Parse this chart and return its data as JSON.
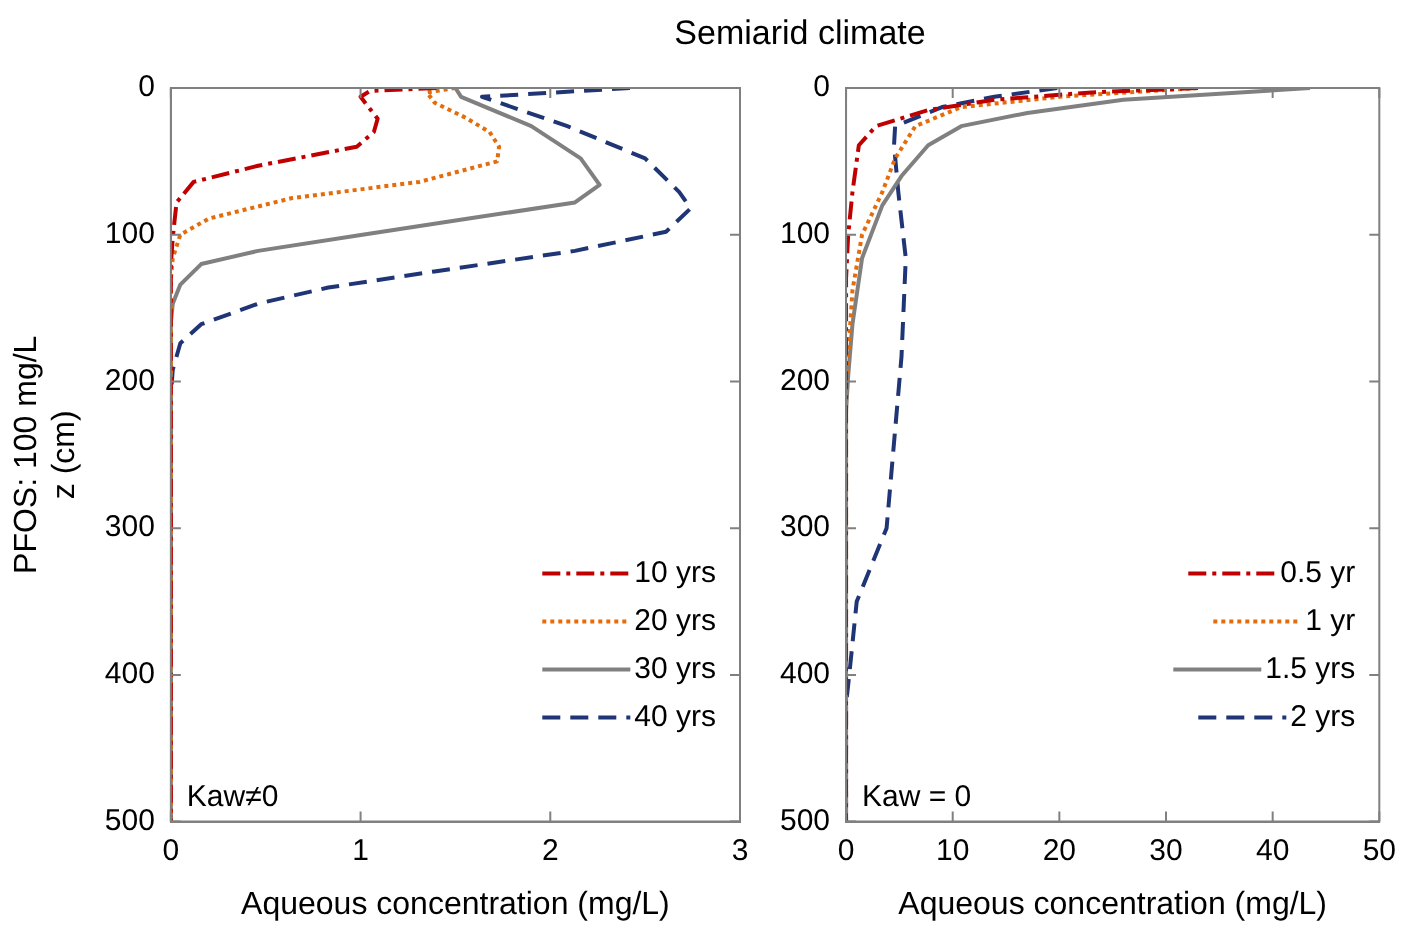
{
  "chart_data": [
    {
      "type": "line",
      "title": "Semiarid climate",
      "xlabel": "Aqueous concentration (mg/L)",
      "ylabel": "PFOS: 100 mg/L\nz (cm)",
      "xlim": [
        0,
        3
      ],
      "xticks": [
        0,
        1,
        2,
        3
      ],
      "ylim": [
        500,
        0
      ],
      "yticks": [
        0,
        100,
        200,
        300,
        400,
        500
      ],
      "grid": false,
      "legend": "bottom right",
      "annotations": [
        "Kaw≠0"
      ],
      "series": [
        {
          "name": "10 yrs",
          "color": "#c00000",
          "line_style": "dashdot",
          "x": [
            1.4,
            1.05,
            1.0,
            1.09,
            1.07,
            0.98,
            0.46,
            0.12,
            0.03,
            0.01,
            0,
            0
          ],
          "values": [
            0,
            2,
            6,
            21,
            30,
            40,
            53,
            64,
            78,
            102,
            120,
            500
          ]
        },
        {
          "name": "20 yrs",
          "color": "#e46c0a",
          "line_style": "dotted",
          "x": [
            1.5,
            1.35,
            1.39,
            1.55,
            1.68,
            1.73,
            1.72,
            1.31,
            0.64,
            0.2,
            0.05,
            0.01,
            0,
            0
          ],
          "values": [
            0,
            3,
            10,
            20,
            30,
            40,
            50,
            64,
            75,
            89,
            100,
            116,
            130,
            500
          ]
        },
        {
          "name": "30 yrs",
          "color": "#808080",
          "line_style": "solid",
          "x": [
            1.5,
            1.53,
            1.9,
            2.16,
            2.26,
            2.13,
            1.57,
            1.01,
            0.46,
            0.16,
            0.05,
            0.01,
            0,
            0
          ],
          "values": [
            0,
            6,
            26,
            48,
            66,
            78,
            89,
            100,
            111,
            120,
            134,
            147,
            160,
            500
          ]
        },
        {
          "name": "40 yrs",
          "color": "#1f3576",
          "line_style": "dashed",
          "x": [
            2.42,
            1.64,
            2.09,
            2.5,
            2.68,
            2.74,
            2.61,
            2.13,
            1.39,
            0.83,
            0.46,
            0.16,
            0.05,
            0.01,
            0,
            0
          ],
          "values": [
            0,
            6,
            26,
            48,
            71,
            82,
            98,
            111,
            125,
            136,
            147,
            161,
            174,
            192,
            210,
            500
          ]
        }
      ]
    },
    {
      "type": "line",
      "xlabel": "Aqueous concentration (mg/L)",
      "xlim": [
        0,
        50
      ],
      "xticks": [
        0,
        10,
        20,
        30,
        40,
        50
      ],
      "ylim": [
        500,
        0
      ],
      "yticks": [
        0,
        100,
        200,
        300,
        400,
        500
      ],
      "grid": false,
      "legend": "bottom right",
      "annotations": [
        "Kaw = 0"
      ],
      "series": [
        {
          "name": "0.5 yr",
          "color": "#c00000",
          "line_style": "dashdot",
          "x": [
            33,
            23,
            13.9,
            7.7,
            2.8,
            1.2,
            0.6,
            0.2,
            0,
            0
          ],
          "values": [
            0,
            3,
            8,
            15,
            26,
            39,
            71,
            100,
            130,
            500
          ]
        },
        {
          "name": "1 yr",
          "color": "#e46c0a",
          "line_style": "dotted",
          "x": [
            33,
            20,
            10.8,
            6.5,
            4.6,
            3.4,
            1.5,
            0.6,
            0.2,
            0,
            0
          ],
          "values": [
            0,
            6,
            13,
            26,
            48,
            71,
            100,
            138,
            183,
            200,
            500
          ]
        },
        {
          "name": "1.5 yrs",
          "color": "#808080",
          "line_style": "solid",
          "x": [
            43.5,
            26,
            17,
            10.8,
            7.7,
            5.2,
            3.4,
            1.5,
            0.6,
            0.2,
            0,
            0
          ],
          "values": [
            0,
            8,
            17,
            26,
            39,
            60,
            80,
            116,
            161,
            196,
            220,
            500
          ]
        },
        {
          "name": "2 yrs",
          "color": "#1f3576",
          "line_style": "dashed",
          "x": [
            19.8,
            13.9,
            9,
            4.6,
            4.5,
            4.9,
            5.6,
            5.2,
            3.8,
            1,
            0.3,
            0,
            0
          ],
          "values": [
            0,
            6,
            13,
            26,
            39,
            71,
            116,
            183,
            300,
            350,
            400,
            420,
            500
          ]
        }
      ]
    }
  ]
}
